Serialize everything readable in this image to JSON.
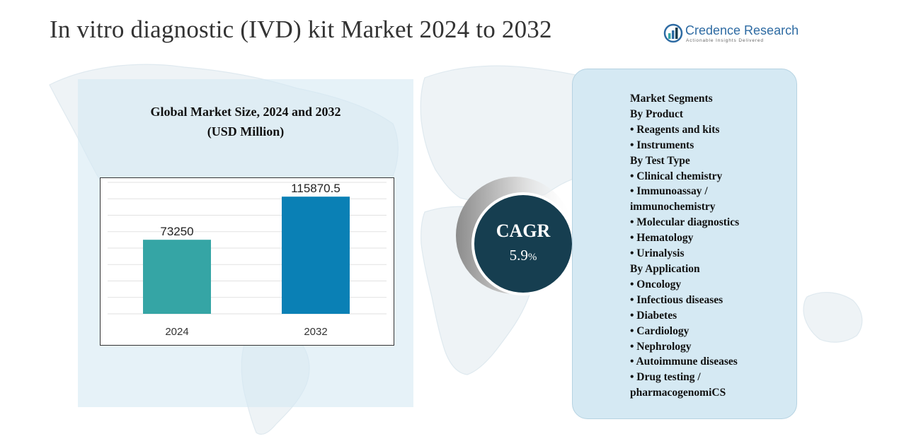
{
  "title": "In vitro diagnostic (IVD) kit Market 2024 to 2032",
  "logo": {
    "name": "Credence Research",
    "tagline": "Actionable Insights Delivered",
    "icon": "credence-logo-icon"
  },
  "colors": {
    "bar_2024": "#35a5a5",
    "bar_2032": "#0a80b5",
    "cagr_circle": "#163e50",
    "panel_bg": "#d5e9f3"
  },
  "chart_data": {
    "type": "bar",
    "title": "Global Market Size, 2024 and 2032",
    "subtitle": "(USD Million)",
    "categories": [
      "2024",
      "2032"
    ],
    "values": [
      73250,
      115870.5
    ],
    "value_labels": [
      "73250",
      "115870.5"
    ],
    "ylim": [
      0,
      130000
    ],
    "grid": true
  },
  "cagr": {
    "label": "CAGR",
    "value": "5.9",
    "unit": "%"
  },
  "segments": {
    "heading": "Market Segments",
    "lines": [
      {
        "text": "By Product",
        "kind": "head"
      },
      {
        "text": "•  Reagents and kits",
        "kind": "item"
      },
      {
        "text": "•  Instruments",
        "kind": "item"
      },
      {
        "text": "By Test Type",
        "kind": "head"
      },
      {
        "text": "•  Clinical chemistry",
        "kind": "item"
      },
      {
        "text": "•  Immunoassay /",
        "kind": "item"
      },
      {
        "text": "immunochemistry",
        "kind": "item"
      },
      {
        "text": "•  Molecular diagnostics",
        "kind": "item"
      },
      {
        "text": "•  Hematology",
        "kind": "item"
      },
      {
        "text": "•  Urinalysis",
        "kind": "item"
      },
      {
        "text": "By Application",
        "kind": "head"
      },
      {
        "text": "•  Oncology",
        "kind": "item"
      },
      {
        "text": "•   Infectious diseases",
        "kind": "item"
      },
      {
        "text": "•   Diabetes",
        "kind": "item"
      },
      {
        "text": "•  Cardiology",
        "kind": "item"
      },
      {
        "text": "•  Nephrology",
        "kind": "item"
      },
      {
        "text": "•  Autoimmune diseases",
        "kind": "item"
      },
      {
        "text": "•  Drug testing /",
        "kind": "item"
      },
      {
        "text": "pharmacogenomiCS",
        "kind": "item"
      }
    ]
  }
}
